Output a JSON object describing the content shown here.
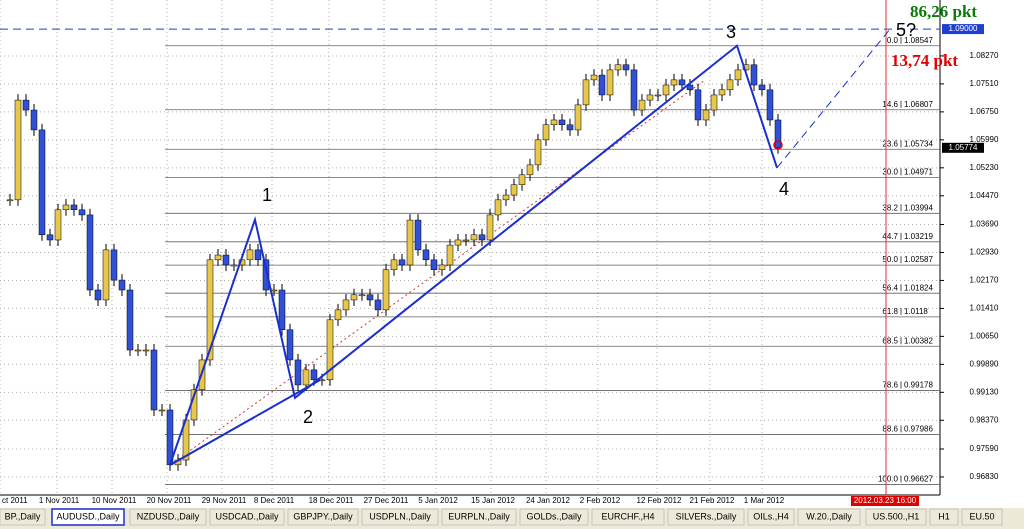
{
  "chart_data": {
    "type": "candlestick",
    "closes": [
      1.0436,
      1.0707,
      1.068,
      1.0626,
      1.0341,
      1.0327,
      1.0409,
      1.0422,
      1.0409,
      1.0395,
      1.0191,
      1.0164,
      1.03,
      1.0218,
      1.0191,
      1.0028,
      1.0028,
      1.0028,
      0.9865,
      0.9865,
      0.9716,
      0.9729,
      0.9838,
      0.992,
      1.0001,
      1.0273,
      1.0286,
      1.0259,
      1.0259,
      1.0273,
      1.03,
      1.0273,
      1.0191,
      1.0191,
      1.0083,
      1.0001,
      0.9933,
      0.9974,
      0.9947,
      0.9947,
      1.011,
      1.0137,
      1.0164,
      1.0178,
      1.0178,
      1.0164,
      1.0137,
      1.0246,
      1.0273,
      1.0259,
      1.0381,
      1.03,
      1.0273,
      1.0246,
      1.0259,
      1.0313,
      1.0327,
      1.0327,
      1.0341,
      1.0327,
      1.0395,
      1.0436,
      1.0449,
      1.0477,
      1.0504,
      1.0531,
      1.0599,
      1.064,
      1.0653,
      1.064,
      1.0626,
      1.0694,
      1.0762,
      1.0775,
      1.0721,
      1.0789,
      1.0803,
      1.0789,
      1.068,
      1.0707,
      1.0721,
      1.0721,
      1.0748,
      1.0762,
      1.0748,
      1.0735,
      1.0653,
      1.068,
      1.0721,
      1.0735,
      1.0762,
      1.0789,
      1.0803,
      1.0748,
      1.0735,
      1.0653,
      1.05774
    ],
    "ylim": [
      0.9634,
      1.0979
    ],
    "yticks": [
      {
        "value": 1.0827,
        "label": "1.08270"
      },
      {
        "value": 1.0751,
        "label": "1.07510"
      },
      {
        "value": 1.0675,
        "label": "1.06750"
      },
      {
        "value": 1.0599,
        "label": "1.05990"
      },
      {
        "value": 1.0523,
        "label": "1.05230"
      },
      {
        "value": 1.0447,
        "label": "1.04470"
      },
      {
        "value": 1.0369,
        "label": "1.03690"
      },
      {
        "value": 1.0293,
        "label": "1.02930"
      },
      {
        "value": 1.0217,
        "label": "1.02170"
      },
      {
        "value": 1.0141,
        "label": "1.01410"
      },
      {
        "value": 1.0065,
        "label": "1.00650"
      },
      {
        "value": 0.9989,
        "label": "0.99890"
      },
      {
        "value": 0.9913,
        "label": "0.99130"
      },
      {
        "value": 0.9837,
        "label": "0.98370"
      },
      {
        "value": 0.9759,
        "label": "0.97590"
      },
      {
        "value": 0.9683,
        "label": "0.96830"
      }
    ],
    "xticks": [
      "ct 2011",
      "1 Nov 2011",
      "10 Nov 2011",
      "20 Nov 2011",
      "29 Nov 2011",
      "8 Dec 2011",
      "18 Dec 2011",
      "27 Dec 2011",
      "5 Jan 2012",
      "15 Jan 2012",
      "24 Jan 2012",
      "2 Feb 2012",
      "12 Feb 2012",
      "21 Feb 2012",
      "1 Mar 2012"
    ],
    "fib": [
      {
        "level": "0.0",
        "price": 1.08547
      },
      {
        "level": "14.6",
        "price": 1.06807
      },
      {
        "level": "23.6",
        "price": 1.05734
      },
      {
        "level": "30.0",
        "price": 1.04971
      },
      {
        "level": "38.2",
        "price": 1.03994
      },
      {
        "level": "44.7",
        "price": 1.03219
      },
      {
        "level": "50.0",
        "price": 1.02587
      },
      {
        "level": "56.4",
        "price": 1.01824
      },
      {
        "level": "61.8",
        "price": 1.0118
      },
      {
        "level": "68.5",
        "price": 1.00382
      },
      {
        "level": "78.6",
        "price": 0.99178
      },
      {
        "level": "88.6",
        "price": 0.97986
      },
      {
        "level": "100.0",
        "price": 0.96627
      }
    ],
    "waves": [
      {
        "label": "1",
        "price": 1.0382
      },
      {
        "label": "2",
        "price": 0.9898
      },
      {
        "label": "3",
        "price": 1.08547
      },
      {
        "label": "4",
        "price": 1.0523
      },
      {
        "label": "5?",
        "price": 1.09
      }
    ],
    "price_markers": [
      {
        "value": 1.09,
        "label": "1.09000",
        "color": "#1e40d0"
      },
      {
        "value": 1.05774,
        "label": "1.05774",
        "color": "#000000"
      }
    ],
    "annotations": [
      {
        "text": "86,26 pkt",
        "color": "#0a7a0a"
      },
      {
        "text": "13,74 pkt",
        "color": "#e00000"
      }
    ],
    "time_marker": "2012.03.23 16:00",
    "bull_color": "#e8c64a",
    "bear_color": "#3050d8",
    "tabs": [
      "BP.,Daily",
      "AUDUSD.,Daily",
      "NZDUSD.,Daily",
      "USDCAD.,Daily",
      "GBPJPY.,Daily",
      "USDPLN.,Daily",
      "EURPLN.,Daily",
      "GOLDs.,Daily",
      "EURCHF.,H4",
      "SILVERs.,Daily",
      "OILs.,H4",
      "W.20.,Daily",
      "US.500.,H1",
      "H1",
      "EU.50"
    ],
    "active_tab": 1
  }
}
